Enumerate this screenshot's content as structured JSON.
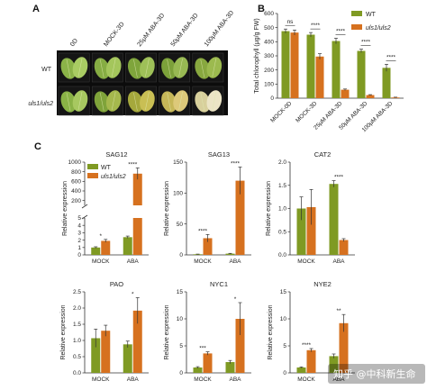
{
  "panels": {
    "A": "A",
    "B": "B",
    "C": "C"
  },
  "colors": {
    "wt": "#7f9a23",
    "mutant": "#d6711f",
    "axis": "#333333"
  },
  "legend": {
    "wt": "WT",
    "mutant": "uls1/uls2"
  },
  "photo": {
    "conditions": [
      "0D",
      "MOCK-3D",
      "25μM ABA-3D",
      "50μM ABA-3D",
      "100μM ABA-3D"
    ],
    "rows": [
      "WT",
      "uls1/uls2"
    ]
  },
  "watermark": "知乎 @中科新生命",
  "chart_data": [
    {
      "id": "B",
      "type": "bar",
      "title": "",
      "ylabel": "Total chlorophyll (μg/g FW)",
      "categories": [
        "MOCK-0D",
        "MOCK-3D",
        "25μM ABA-3D",
        "50μM ABA-3D",
        "100μM ABA-3D"
      ],
      "ylim": [
        0,
        600
      ],
      "yticks": [
        0,
        100,
        200,
        300,
        400,
        500,
        600
      ],
      "series": [
        {
          "name": "WT",
          "values": [
            475,
            450,
            405,
            335,
            215
          ],
          "errors": [
            15,
            15,
            20,
            12,
            25
          ]
        },
        {
          "name": "uls1/uls2",
          "values": [
            465,
            295,
            60,
            22,
            5
          ],
          "errors": [
            18,
            20,
            5,
            3,
            2
          ]
        }
      ],
      "significance": [
        "ns",
        "****",
        "****",
        "****",
        "****"
      ]
    },
    {
      "id": "SAG12",
      "type": "bar",
      "title": "SAG12",
      "ylabel": "Relative expression",
      "categories": [
        "MOCK",
        "ABA"
      ],
      "broken_axis": true,
      "yticks": [
        0,
        1,
        2,
        3,
        4,
        5,
        200,
        400,
        600,
        800,
        1000
      ],
      "series": [
        {
          "name": "WT",
          "values": [
            1.0,
            2.4
          ],
          "errors": [
            0.1,
            0.15
          ]
        },
        {
          "name": "uls1/uls2",
          "values": [
            1.9,
            760
          ],
          "errors": [
            0.2,
            120
          ]
        }
      ],
      "significance": [
        "*",
        "****"
      ]
    },
    {
      "id": "SAG13",
      "type": "bar",
      "title": "SAG13",
      "ylabel": "Relative expression",
      "categories": [
        "MOCK",
        "ABA"
      ],
      "ylim": [
        0,
        150
      ],
      "yticks": [
        0,
        50,
        100,
        150
      ],
      "series": [
        {
          "name": "WT",
          "values": [
            1,
            2
          ],
          "errors": [
            0.3,
            0.5
          ]
        },
        {
          "name": "uls1/uls2",
          "values": [
            27,
            120
          ],
          "errors": [
            6,
            22
          ]
        }
      ],
      "significance": [
        "****",
        "****"
      ]
    },
    {
      "id": "CAT2",
      "type": "bar",
      "title": "CAT2",
      "ylabel": "Relative expression",
      "categories": [
        "MOCK",
        "ABA"
      ],
      "ylim": [
        0,
        2.0
      ],
      "yticks": [
        0.0,
        0.5,
        1.0,
        1.5,
        2.0
      ],
      "series": [
        {
          "name": "WT",
          "values": [
            1.0,
            1.53
          ],
          "errors": [
            0.25,
            0.07
          ]
        },
        {
          "name": "uls1/uls2",
          "values": [
            1.03,
            0.32
          ],
          "errors": [
            0.38,
            0.03
          ]
        }
      ],
      "significance": [
        "",
        "****"
      ]
    },
    {
      "id": "PAO",
      "type": "bar",
      "title": "PAO",
      "ylabel": "Relative expression",
      "categories": [
        "MOCK",
        "ABA"
      ],
      "ylim": [
        0,
        2.5
      ],
      "yticks": [
        0.0,
        0.5,
        1.0,
        1.5,
        2.0,
        2.5
      ],
      "series": [
        {
          "name": "WT",
          "values": [
            1.07,
            0.88
          ],
          "errors": [
            0.28,
            0.1
          ]
        },
        {
          "name": "uls1/uls2",
          "values": [
            1.3,
            1.92
          ],
          "errors": [
            0.17,
            0.4
          ]
        }
      ],
      "significance": [
        "",
        "*"
      ]
    },
    {
      "id": "NYC1",
      "type": "bar",
      "title": "NYC1",
      "ylabel": "Relative expression",
      "categories": [
        "MOCK",
        "ABA"
      ],
      "ylim": [
        0,
        15
      ],
      "yticks": [
        0,
        5,
        10,
        15
      ],
      "series": [
        {
          "name": "WT",
          "values": [
            1.0,
            2.0
          ],
          "errors": [
            0.15,
            0.3
          ]
        },
        {
          "name": "uls1/uls2",
          "values": [
            3.6,
            10.0
          ],
          "errors": [
            0.3,
            3.0
          ]
        }
      ],
      "significance": [
        "***",
        "*"
      ]
    },
    {
      "id": "NYE2",
      "type": "bar",
      "title": "NYE2",
      "ylabel": "Relative expression",
      "categories": [
        "MOCK",
        "ABA"
      ],
      "ylim": [
        0,
        15
      ],
      "yticks": [
        0,
        5,
        10,
        15
      ],
      "series": [
        {
          "name": "WT",
          "values": [
            1.0,
            3.1
          ],
          "errors": [
            0.1,
            0.4
          ]
        },
        {
          "name": "uls1/uls2",
          "values": [
            4.2,
            9.2
          ],
          "errors": [
            0.3,
            1.6
          ]
        }
      ],
      "significance": [
        "****",
        "**"
      ]
    }
  ]
}
